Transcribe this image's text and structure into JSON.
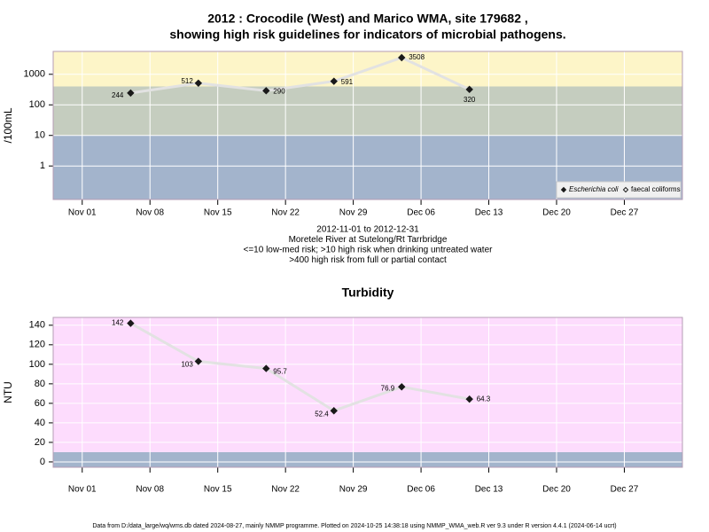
{
  "chart_data": [
    {
      "type": "line",
      "title": [
        "2012 : Crocodile (West) and Marico WMA, site 179682 ,",
        "showing high risk guidelines for indicators of microbial pathogens."
      ],
      "y_label": "/100mL",
      "log_y": true,
      "x": [
        "2012-11-06",
        "2012-11-13",
        "2012-11-20",
        "2012-11-27",
        "2012-12-04",
        "2012-12-11"
      ],
      "xlim": [
        "2012-10-29",
        "2013-01-02"
      ],
      "xticks": [
        {
          "value": "2012-11-01",
          "label": "Nov 01"
        },
        {
          "value": "2012-11-08",
          "label": "Nov 08"
        },
        {
          "value": "2012-11-15",
          "label": "Nov 15"
        },
        {
          "value": "2012-11-22",
          "label": "Nov 22"
        },
        {
          "value": "2012-11-29",
          "label": "Nov 29"
        },
        {
          "value": "2012-12-06",
          "label": "Dec 06"
        },
        {
          "value": "2012-12-13",
          "label": "Dec 13"
        },
        {
          "value": "2012-12-20",
          "label": "Dec 20"
        },
        {
          "value": "2012-12-27",
          "label": "Dec 27"
        }
      ],
      "ylim": [
        0.08,
        5600
      ],
      "yticks": [
        1,
        10,
        100,
        1000
      ],
      "grid": true,
      "bands": [
        {
          "to": 10,
          "color": "#a3b4cc"
        },
        {
          "from": 10,
          "to": 400,
          "color": "#c5cdbf"
        },
        {
          "from": 400,
          "color": "#fdf5c8"
        }
      ],
      "series": [
        {
          "name": "Escherichia coli",
          "color": "#1a1a1a",
          "line_color": "#e2e2e2",
          "marker": "filled",
          "values": [
            244,
            512,
            290,
            591,
            3508,
            320
          ]
        },
        {
          "name": "faecal coliforms",
          "color": "#1a1a1a",
          "line_color": "#e2e2e2",
          "marker": "open",
          "values": [
            null,
            null,
            null,
            null,
            null,
            null
          ]
        }
      ],
      "legend": "bottom-right",
      "notes": [
        "2012-11-01 to 2012-12-31",
        "Moretele River at Sutelong/Rt Tarrbridge",
        "<=10 low-med risk; >10 high risk when drinking untreated water",
        ">400 high risk from full or partial contact"
      ]
    },
    {
      "type": "line",
      "title": [
        "Turbidity"
      ],
      "y_label": "NTU",
      "log_y": false,
      "x": [
        "2012-11-06",
        "2012-11-13",
        "2012-11-20",
        "2012-11-27",
        "2012-12-04",
        "2012-12-11"
      ],
      "xlim": [
        "2012-10-29",
        "2013-01-02"
      ],
      "xticks": [
        {
          "value": "2012-11-01",
          "label": "Nov 01"
        },
        {
          "value": "2012-11-08",
          "label": "Nov 08"
        },
        {
          "value": "2012-11-15",
          "label": "Nov 15"
        },
        {
          "value": "2012-11-22",
          "label": "Nov 22"
        },
        {
          "value": "2012-11-29",
          "label": "Nov 29"
        },
        {
          "value": "2012-12-06",
          "label": "Dec 06"
        },
        {
          "value": "2012-12-13",
          "label": "Dec 13"
        },
        {
          "value": "2012-12-20",
          "label": "Dec 20"
        },
        {
          "value": "2012-12-27",
          "label": "Dec 27"
        }
      ],
      "ylim": [
        -5.5,
        148
      ],
      "yticks": [
        0,
        20,
        40,
        60,
        80,
        100,
        120,
        140
      ],
      "grid": true,
      "bands": [
        {
          "to": 10,
          "color": "#a3b4cc"
        },
        {
          "from": 10,
          "color": "#fddcfd"
        }
      ],
      "series": [
        {
          "name": "Turbidity",
          "color": "#1a1a1a",
          "line_color": "#e2e2e2",
          "marker": "filled",
          "values": [
            142,
            103,
            95.7,
            52.4,
            76.9,
            64.3
          ]
        }
      ]
    }
  ],
  "footer": "Data from D:/data_large/wq/wms.db dated 2024-08-27, mainly NMMP programme. Plotted on 2024-10-25 14:38:18 using NMMP_WMA_web.R ver 9.3 under R version 4.4.1 (2024-06-14 ucrt)"
}
